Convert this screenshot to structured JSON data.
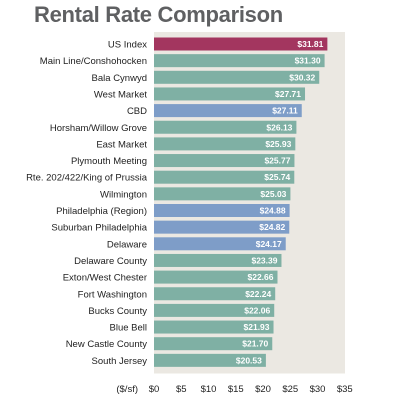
{
  "chart_data": {
    "type": "bar",
    "orientation": "horizontal",
    "title": "Rental Rate Comparison",
    "xlabel": "($/sf)",
    "ylabel": "",
    "xlim": [
      0,
      35
    ],
    "xticks": [
      0,
      5,
      10,
      15,
      20,
      25,
      30,
      35
    ],
    "xtick_labels": [
      "$0",
      "$5",
      "$10",
      "$15",
      "$20",
      "$25",
      "$30",
      "$35"
    ],
    "grid": false,
    "categories": [
      "US Index",
      "Main Line/Conshohocken",
      "Bala Cynwyd",
      "West Market",
      "CBD",
      "Horsham/Willow Grove",
      "East Market",
      "Plymouth Meeting",
      "Rte. 202/422/King of Prussia",
      "Wilmington",
      "Philadelphia (Region)",
      "Suburban Philadelphia",
      "Delaware",
      "Delaware County",
      "Exton/West Chester",
      "Fort Washington",
      "Bucks County",
      "Blue Bell",
      "New Castle County",
      "South Jersey"
    ],
    "values": [
      31.81,
      31.3,
      30.32,
      27.71,
      27.11,
      26.13,
      25.93,
      25.77,
      25.74,
      25.03,
      24.88,
      24.82,
      24.17,
      23.39,
      22.66,
      22.24,
      22.06,
      21.93,
      21.7,
      20.53
    ],
    "value_labels": [
      "$31.81",
      "$31.30",
      "$30.32",
      "$27.71",
      "$27.11",
      "$26.13",
      "$25.93",
      "$25.77",
      "$25.74",
      "$25.03",
      "$24.88",
      "$24.82",
      "$24.17",
      "$23.39",
      "$22.66",
      "$22.24",
      "$22.06",
      "$21.93",
      "$21.70",
      "$20.53"
    ],
    "bar_groups": [
      "index",
      "submarket",
      "submarket",
      "submarket",
      "aggregate",
      "submarket",
      "submarket",
      "submarket",
      "submarket",
      "submarket",
      "aggregate",
      "aggregate",
      "aggregate",
      "submarket",
      "submarket",
      "submarket",
      "submarket",
      "submarket",
      "submarket",
      "submarket"
    ],
    "colors": {
      "index": "#a3365f",
      "submarket": "#7fb0a4",
      "aggregate": "#7e9dc8",
      "plot_background": "#ebe8e2",
      "title": "#5f6062"
    }
  }
}
